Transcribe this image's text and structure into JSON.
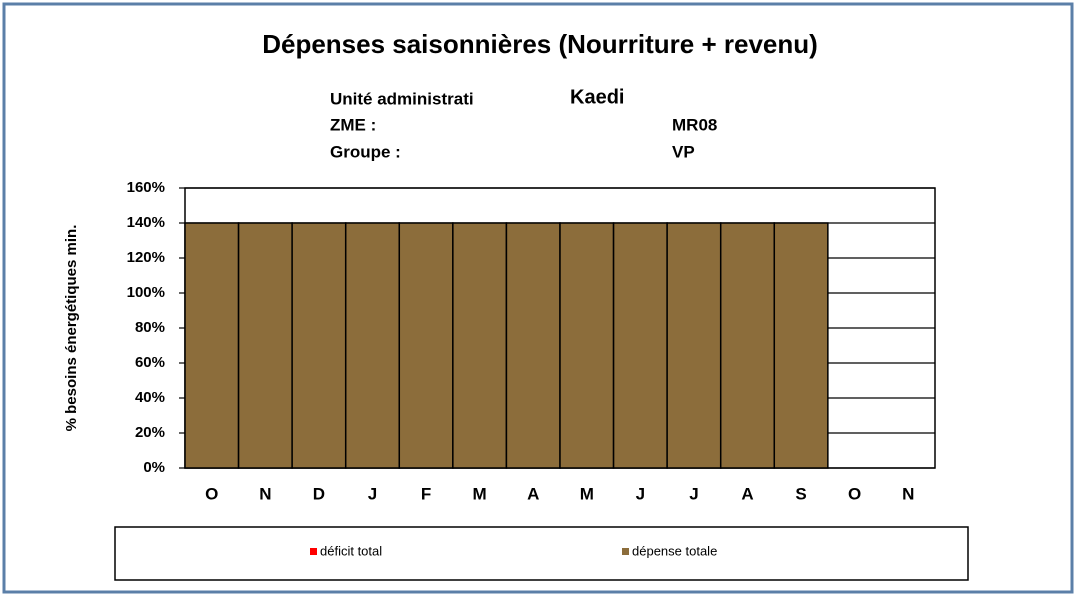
{
  "chart_data": {
    "type": "bar",
    "stacked": true,
    "title": "Dépenses saisonnières (Nourriture + revenu)",
    "info": [
      {
        "label": "Unité administrati",
        "value": "Kaedi"
      },
      {
        "label": "ZME :",
        "value": "MR08"
      },
      {
        "label": "Groupe :",
        "value": "VP"
      }
    ],
    "y_label": "% besoins énergétiques min.",
    "categories": [
      "O",
      "N",
      "D",
      "J",
      "F",
      "M",
      "A",
      "M",
      "J",
      "J",
      "A",
      "S",
      "O",
      "N"
    ],
    "series": [
      {
        "name": "déficit total",
        "color": "#ff0000",
        "values": [
          0,
          0,
          0,
          0,
          0,
          0,
          0,
          0,
          0,
          0,
          0,
          0,
          null,
          null
        ]
      },
      {
        "name": "dépense totale",
        "color": "#8c6d3b",
        "values": [
          140,
          140,
          140,
          140,
          140,
          140,
          140,
          140,
          140,
          140,
          140,
          140,
          null,
          null
        ]
      }
    ],
    "ylim": [
      0,
      160
    ],
    "yticks": [
      {
        "value": 0,
        "label": "0%"
      },
      {
        "value": 20,
        "label": "20%"
      },
      {
        "value": 40,
        "label": "40%"
      },
      {
        "value": 60,
        "label": "60%"
      },
      {
        "value": 80,
        "label": "80%"
      },
      {
        "value": 100,
        "label": "100%"
      },
      {
        "value": 120,
        "label": "120%"
      },
      {
        "value": 140,
        "label": "140%"
      },
      {
        "value": 160,
        "label": "160%"
      }
    ],
    "grid": true,
    "legend": "bottom"
  }
}
